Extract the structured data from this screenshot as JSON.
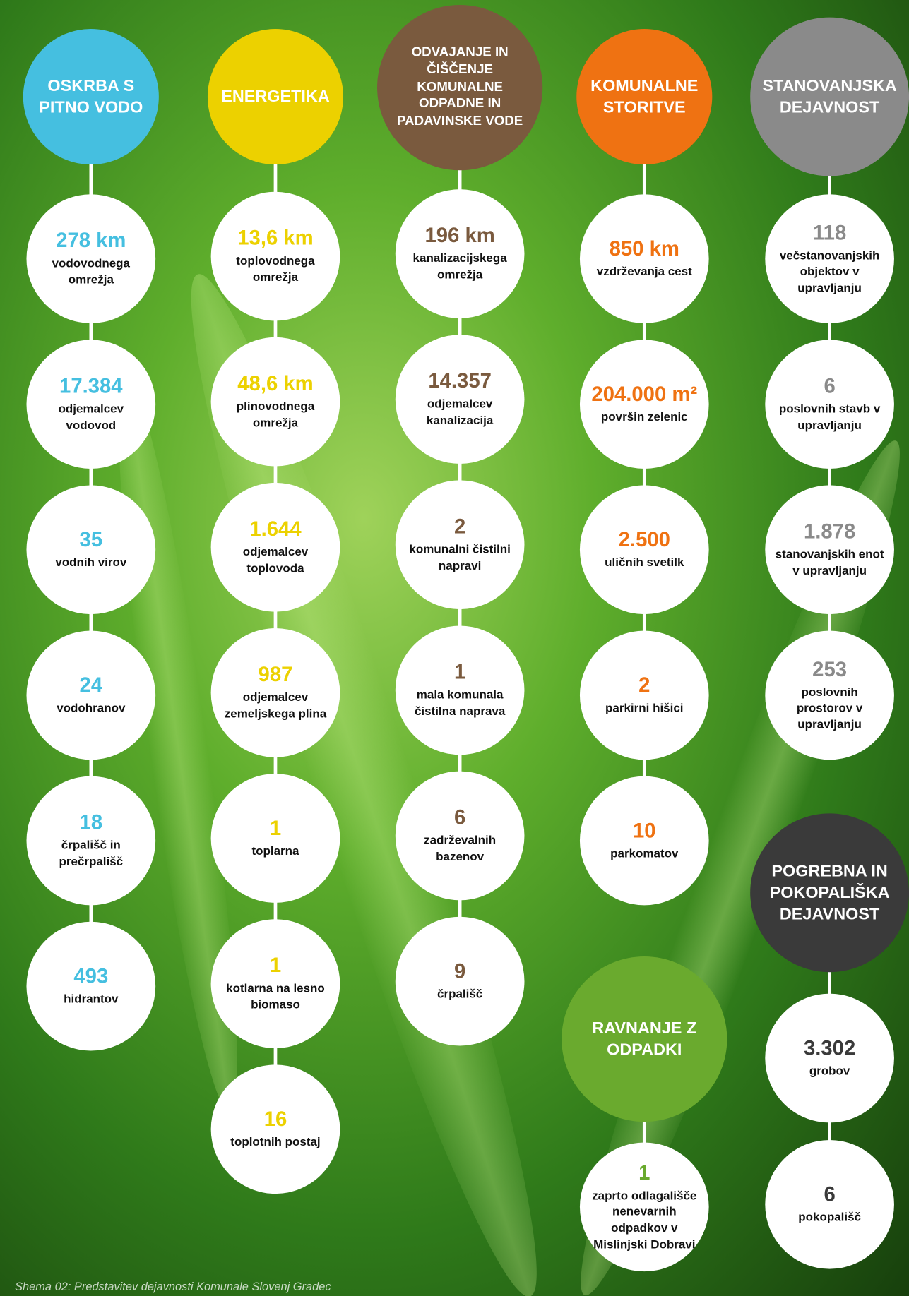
{
  "groups": [
    {
      "title": "OSKRBA S PITNO VODO",
      "items": [
        {
          "value": "278 km",
          "label": "vodovodnega omrežja"
        },
        {
          "value": "17.384",
          "label": "odjemalcev vodovod"
        },
        {
          "value": "35",
          "label": "vodnih virov"
        },
        {
          "value": "24",
          "label": "vodohranov"
        },
        {
          "value": "18",
          "label": "črpališč in prečrpališč"
        },
        {
          "value": "493",
          "label": "hidrantov"
        }
      ]
    },
    {
      "title": "ENERGETIKA",
      "items": [
        {
          "value": "13,6 km",
          "label": "toplovodnega omrežja"
        },
        {
          "value": "48,6 km",
          "label": "plinovodnega omrežja"
        },
        {
          "value": "1.644",
          "label": "odjemalcev toplovoda"
        },
        {
          "value": "987",
          "label": "odjemalcev zemeljskega plina"
        },
        {
          "value": "1",
          "label": "toplarna"
        },
        {
          "value": "1",
          "label": "kotlarna na lesno biomaso"
        },
        {
          "value": "16",
          "label": "toplotnih postaj"
        }
      ]
    },
    {
      "title": "ODVAJANJE IN ČIŠČENJE KOMUNALNE ODPADNE IN PADAVINSKE VODE",
      "items": [
        {
          "value": "196 km",
          "label": "kanalizacijskega omrežja"
        },
        {
          "value": "14.357",
          "label": "odjemalcev kanalizacija"
        },
        {
          "value": "2",
          "label": "komunalni čistilni napravi"
        },
        {
          "value": "1",
          "label": "mala komunala čistilna naprava"
        },
        {
          "value": "6",
          "label": "zadrževalnih bazenov"
        },
        {
          "value": "9",
          "label": "črpališč"
        }
      ]
    },
    {
      "title": "KOMUNALNE STORITVE",
      "items": [
        {
          "value": "850 km",
          "label": "vzdrževanja cest"
        },
        {
          "value": "204.000 m²",
          "label": "površin zelenic"
        },
        {
          "value": "2.500",
          "label": "uličnih svetilk"
        },
        {
          "value": "2",
          "label": "parkirni hišici"
        },
        {
          "value": "10",
          "label": "parkomatov"
        }
      ]
    },
    {
      "title": "STANOVANJSKA DEJAVNOST",
      "items": [
        {
          "value": "118",
          "label": "večstanovanjskih objektov v upravljanju"
        },
        {
          "value": "6",
          "label": "poslovnih stavb v upravljanju"
        },
        {
          "value": "1.878",
          "label": "stanovanjskih enot v upravljanju"
        },
        {
          "value": "253",
          "label": "poslovnih prostorov v upravljanju"
        }
      ]
    },
    {
      "title": "RAVNANJE Z ODPADKI",
      "items": [
        {
          "value": "1",
          "label": "zaprto odlagališče nenevarnih odpadkov v Mislinjski Dobravi"
        }
      ]
    },
    {
      "title": "POGREBNA IN POKOPALIŠKA DEJAVNOST",
      "items": [
        {
          "value": "3.302",
          "label": "grobov"
        },
        {
          "value": "6",
          "label": "pokopališč"
        }
      ]
    }
  ],
  "caption": "Shema 02: Predstavitev dejavnosti Komunale Slovenj Gradec"
}
